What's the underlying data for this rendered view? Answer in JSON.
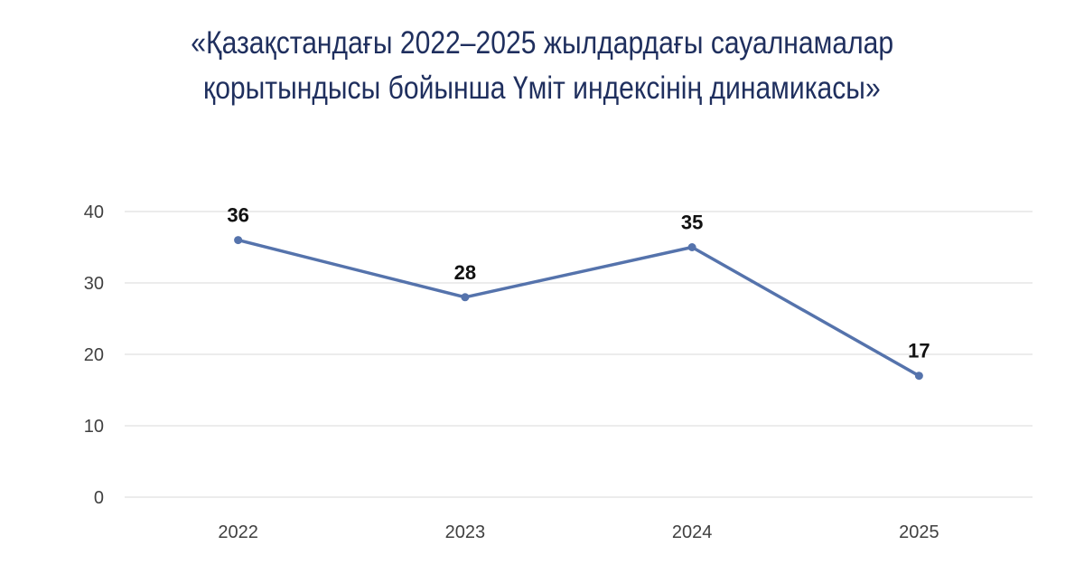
{
  "chart_data": {
    "type": "line",
    "title_lines": [
      "«Қазақстандағы 2022–2025 жылдардағы сауалнамалар",
      "қорытындысы бойынша Үміт индексінің динамикасы»"
    ],
    "categories": [
      "2022",
      "2023",
      "2024",
      "2025"
    ],
    "series": [
      {
        "values": [
          36,
          28,
          35,
          17
        ],
        "color": "#5573ac"
      }
    ],
    "data_labels": [
      "36",
      "28",
      "35",
      "17"
    ],
    "ylim": [
      0,
      40
    ],
    "yticks": [
      "0",
      "10",
      "20",
      "30",
      "40"
    ],
    "xlabel": "",
    "ylabel": "",
    "grid": true,
    "legend": "none"
  }
}
